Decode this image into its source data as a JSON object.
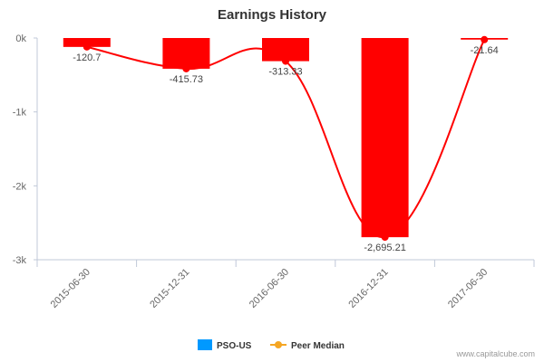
{
  "chart_data": {
    "type": "bar",
    "title": "Earnings History",
    "categories": [
      "2015-06-30",
      "2015-12-31",
      "2016-06-30",
      "2016-12-31",
      "2017-06-30"
    ],
    "series": [
      {
        "name": "PSO-US",
        "type": "bar",
        "color": "#ff0000",
        "values": [
          -120.7,
          -415.73,
          -313.33,
          -2695.21,
          -21.64
        ],
        "data_labels": [
          "-120.7",
          "-415.73",
          "-313.33",
          "-2,695.21",
          "-21.64"
        ]
      },
      {
        "name": "Peer Median",
        "type": "line",
        "color": "#ff0000",
        "values": [
          -120.7,
          -415.73,
          -313.33,
          -2695.21,
          -21.64
        ]
      }
    ],
    "legend_colors": {
      "PSO-US": "#0099ff",
      "Peer Median": "#f5a623"
    },
    "yticks": [
      {
        "value": 0,
        "label": "0k"
      },
      {
        "value": -1000,
        "label": "-1k"
      },
      {
        "value": -2000,
        "label": "-2k"
      },
      {
        "value": -3000,
        "label": "-3k"
      }
    ],
    "ylim": [
      -3000,
      0
    ],
    "xlabel": "",
    "ylabel": "",
    "grid": false,
    "legend_position": "bottom-center"
  },
  "credit": "www.capitalcube.com"
}
